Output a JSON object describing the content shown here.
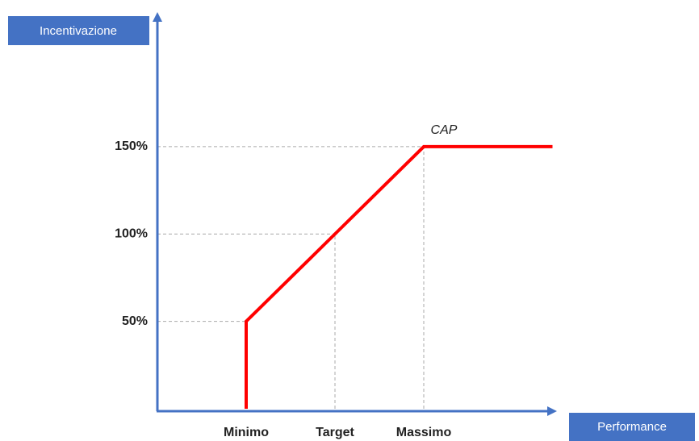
{
  "chart_data": {
    "type": "line",
    "y_label": "Incentivazione",
    "x_label": "Performance",
    "annotation": "CAP",
    "xlim": [
      0,
      4.5
    ],
    "ylim": [
      0,
      227
    ],
    "xticks": [
      {
        "value": 1,
        "label": "Minimo"
      },
      {
        "value": 2,
        "label": "Target"
      },
      {
        "value": 3,
        "label": "Massimo"
      }
    ],
    "yticks": [
      {
        "value": 50,
        "label": "50%"
      },
      {
        "value": 100,
        "label": "100%"
      },
      {
        "value": 150,
        "label": "150%"
      }
    ],
    "grid": true,
    "axis_color": "#4472c4",
    "series": [
      {
        "color": "#ff0000",
        "x": [
          1,
          1,
          2,
          3,
          4.45
        ],
        "values": [
          0,
          50,
          100,
          150,
          150
        ]
      }
    ]
  }
}
